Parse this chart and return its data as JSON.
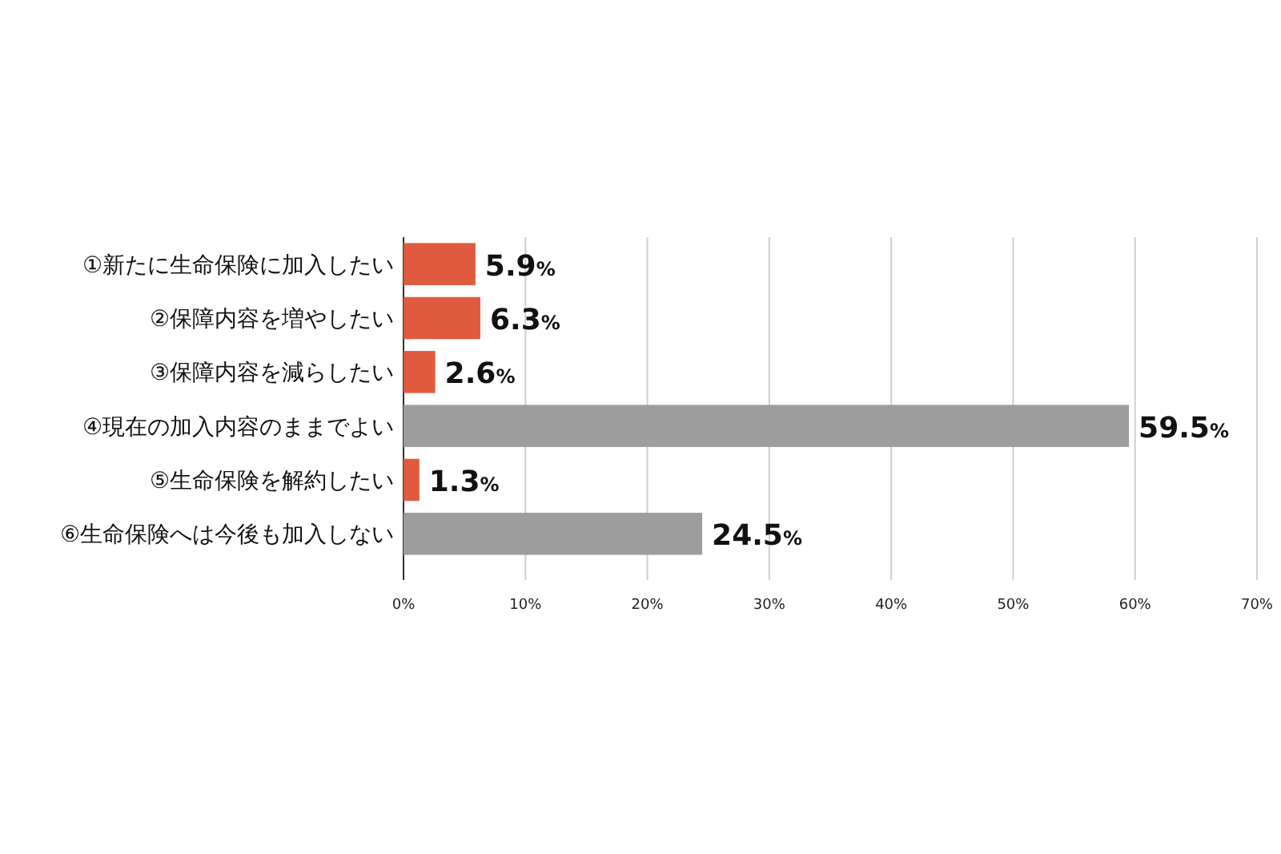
{
  "chart_data": {
    "type": "bar",
    "orientation": "horizontal",
    "categories": [
      "①新たに生命保険に加入したい",
      "②保障内容を増やしたい",
      "③保障内容を減らしたい",
      "④現在の加入内容のままでよい",
      "⑤生命保険を解約したい",
      "⑥生命保険へは今後も加入しない"
    ],
    "values": [
      5.9,
      6.3,
      2.6,
      59.5,
      1.3,
      24.5
    ],
    "value_labels": [
      "5.9%",
      "6.3%",
      "2.6%",
      "59.5%",
      "1.3%",
      "24.5%"
    ],
    "colors": [
      "#e05a40",
      "#e05a40",
      "#e05a40",
      "#9d9d9d",
      "#e05a40",
      "#9d9d9d"
    ],
    "xlim": [
      0,
      70
    ],
    "xticks": [
      {
        "value": 0,
        "label": "0%"
      },
      {
        "value": 10,
        "label": "10%"
      },
      {
        "value": 20,
        "label": "20%"
      },
      {
        "value": 30,
        "label": "30%"
      },
      {
        "value": 40,
        "label": "40%"
      },
      {
        "value": 50,
        "label": "50%"
      },
      {
        "value": 60,
        "label": "60%"
      },
      {
        "value": 70,
        "label": "70%"
      }
    ],
    "grid": "x"
  }
}
